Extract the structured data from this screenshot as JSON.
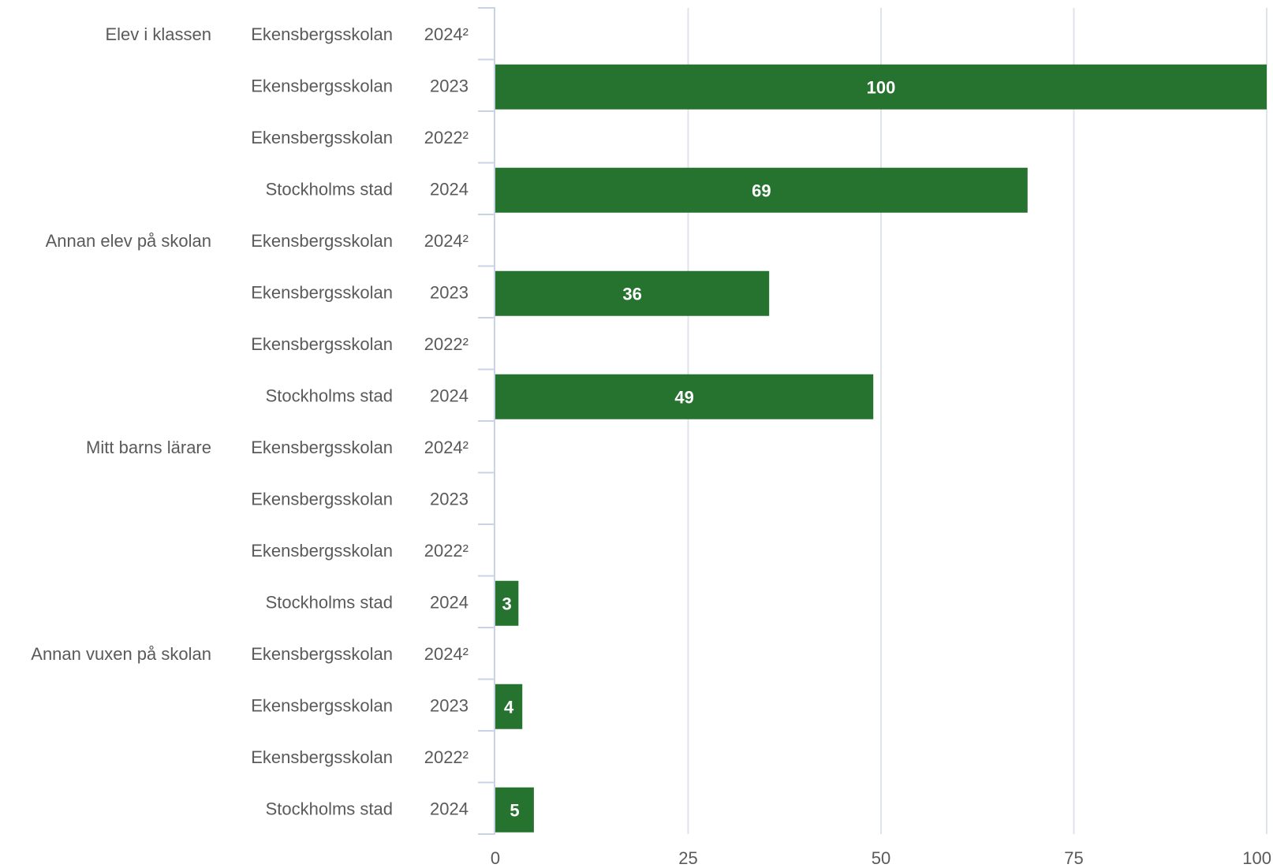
{
  "chart_data": {
    "type": "bar",
    "orientation": "horizontal",
    "title": "",
    "xlabel": "",
    "ylabel": "",
    "xlim": [
      0,
      100
    ],
    "ticks": [
      "0",
      "25",
      "50",
      "75",
      "100"
    ],
    "tick_values": [
      0,
      25,
      50,
      75,
      100
    ],
    "grid": true,
    "bar_color": "#267330",
    "groups": [
      {
        "group": "Elev i klassen",
        "rows": [
          {
            "unit": "Ekensbergsskolan",
            "year": "2024²",
            "value": null,
            "label": ""
          },
          {
            "unit": "Ekensbergsskolan",
            "year": "2023",
            "value": 100,
            "label": "100"
          },
          {
            "unit": "Ekensbergsskolan",
            "year": "2022²",
            "value": null,
            "label": ""
          },
          {
            "unit": "Stockholms stad",
            "year": "2024",
            "value": 69,
            "label": "69"
          }
        ]
      },
      {
        "group": "Annan elev på skolan",
        "rows": [
          {
            "unit": "Ekensbergsskolan",
            "year": "2024²",
            "value": null,
            "label": ""
          },
          {
            "unit": "Ekensbergsskolan",
            "year": "2023",
            "value": 35.5,
            "label": "36"
          },
          {
            "unit": "Ekensbergsskolan",
            "year": "2022²",
            "value": null,
            "label": ""
          },
          {
            "unit": "Stockholms stad",
            "year": "2024",
            "value": 49,
            "label": "49"
          }
        ]
      },
      {
        "group": "Mitt barns lärare",
        "rows": [
          {
            "unit": "Ekensbergsskolan",
            "year": "2024²",
            "value": null,
            "label": ""
          },
          {
            "unit": "Ekensbergsskolan",
            "year": "2023",
            "value": null,
            "label": ""
          },
          {
            "unit": "Ekensbergsskolan",
            "year": "2022²",
            "value": null,
            "label": ""
          },
          {
            "unit": "Stockholms stad",
            "year": "2024",
            "value": 3,
            "label": "3"
          }
        ]
      },
      {
        "group": "Annan vuxen på skolan",
        "rows": [
          {
            "unit": "Ekensbergsskolan",
            "year": "2024²",
            "value": null,
            "label": ""
          },
          {
            "unit": "Ekensbergsskolan",
            "year": "2023",
            "value": 3.5,
            "label": "4"
          },
          {
            "unit": "Ekensbergsskolan",
            "year": "2022²",
            "value": null,
            "label": ""
          },
          {
            "unit": "Stockholms stad",
            "year": "2024",
            "value": 5,
            "label": "5"
          }
        ]
      }
    ]
  }
}
